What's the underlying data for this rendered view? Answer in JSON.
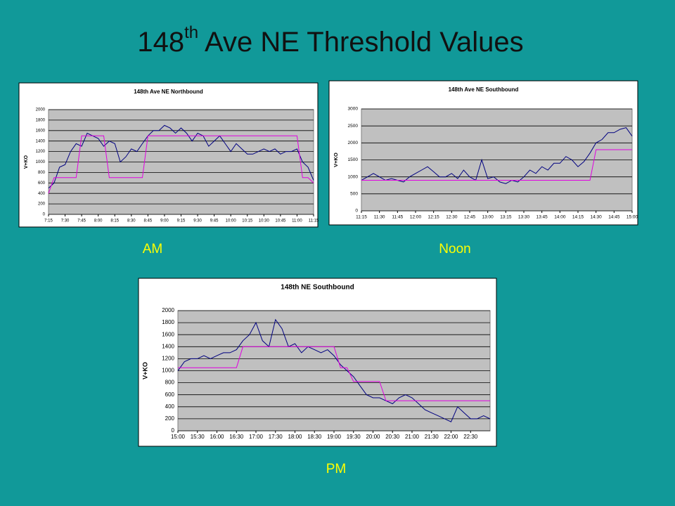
{
  "slide": {
    "title_main": "148",
    "title_sup": "th",
    "title_rest": " Ave NE Threshold Values",
    "captions": [
      "AM",
      "Noon",
      "PM"
    ]
  },
  "chart_data": [
    {
      "type": "line",
      "title": "148th Ave NE Northbound",
      "ylabel": "V+KO",
      "categories": [
        "7:15",
        null,
        null,
        "7:30",
        null,
        null,
        "7:45",
        null,
        null,
        "8:00",
        null,
        null,
        "8:15",
        null,
        null,
        "8:30",
        null,
        null,
        "8:45",
        null,
        null,
        "9:00",
        null,
        null,
        "9:15",
        null,
        null,
        "9:30",
        null,
        null,
        "9:45",
        null,
        null,
        "10:00",
        null,
        null,
        "10:15",
        null,
        null,
        "10:30",
        null,
        null,
        "10:45",
        null,
        null,
        "11:00",
        null,
        null,
        "11:15"
      ],
      "series": [
        {
          "color": "#000080",
          "values": [
            500,
            600,
            900,
            950,
            1200,
            1350,
            1300,
            1550,
            1500,
            1450,
            1300,
            1400,
            1350,
            1000,
            1100,
            1250,
            1200,
            1350,
            1500,
            1600,
            1600,
            1700,
            1650,
            1550,
            1650,
            1550,
            1400,
            1550,
            1500,
            1300,
            1400,
            1500,
            1350,
            1200,
            1350,
            1250,
            1150,
            1150,
            1200,
            1250,
            1200,
            1250,
            1150,
            1200,
            1200,
            1250,
            1000,
            900,
            650
          ]
        },
        {
          "color": "#e000e0",
          "values": [
            400,
            700,
            700,
            700,
            700,
            700,
            1500,
            1500,
            1500,
            1500,
            1500,
            700,
            700,
            700,
            700,
            700,
            700,
            700,
            1500,
            1500,
            1500,
            1500,
            1500,
            1500,
            1500,
            1500,
            1500,
            1500,
            1500,
            1500,
            1500,
            1500,
            1500,
            1500,
            1500,
            1500,
            1500,
            1500,
            1500,
            1500,
            1500,
            1500,
            1500,
            1500,
            1500,
            1500,
            700,
            700,
            600
          ]
        }
      ],
      "ylim": [
        0,
        2000
      ],
      "yticks": [
        0,
        200,
        400,
        600,
        800,
        1000,
        1200,
        1400,
        1600,
        1800,
        2000
      ],
      "grid": true
    },
    {
      "type": "line",
      "title": "148th Ave NE Southbound",
      "ylabel": "V+KO",
      "categories": [
        "11:15",
        null,
        null,
        "11:30",
        null,
        null,
        "11:45",
        null,
        null,
        "12:00",
        null,
        null,
        "12:15",
        null,
        null,
        "12:30",
        null,
        null,
        "12:45",
        null,
        null,
        "13:00",
        null,
        null,
        "13:15",
        null,
        null,
        "13:30",
        null,
        null,
        "13:45",
        null,
        null,
        "14:00",
        null,
        null,
        "14:15",
        null,
        null,
        "14:30",
        null,
        null,
        "14:45",
        null,
        null,
        "15:00"
      ],
      "series": [
        {
          "color": "#000080",
          "values": [
            900,
            1000,
            1100,
            1000,
            900,
            950,
            900,
            850,
            1000,
            1100,
            1200,
            1300,
            1150,
            1000,
            1000,
            1100,
            950,
            1200,
            1000,
            900,
            1500,
            950,
            1000,
            850,
            800,
            900,
            850,
            1000,
            1200,
            1100,
            1300,
            1200,
            1400,
            1400,
            1600,
            1500,
            1300,
            1450,
            1700,
            2000,
            2100,
            2300,
            2300,
            2400,
            2450,
            2200
          ]
        },
        {
          "color": "#e000e0",
          "values": [
            900,
            900,
            900,
            900,
            900,
            900,
            900,
            900,
            900,
            900,
            900,
            900,
            900,
            900,
            900,
            900,
            900,
            900,
            900,
            900,
            900,
            900,
            900,
            900,
            900,
            900,
            900,
            900,
            900,
            900,
            900,
            900,
            900,
            900,
            900,
            900,
            900,
            900,
            900,
            1800,
            1800,
            1800,
            1800,
            1800,
            1800,
            1800
          ]
        }
      ],
      "ylim": [
        0,
        3000
      ],
      "yticks": [
        0,
        500,
        1000,
        1500,
        2000,
        2500,
        3000
      ],
      "grid": true
    },
    {
      "type": "line",
      "title": "148th NE Southbound",
      "ylabel": "V+KO",
      "categories": [
        "15:00",
        null,
        null,
        "15:30",
        null,
        null,
        "16:00",
        null,
        null,
        "16:30",
        null,
        null,
        "17:00",
        null,
        null,
        "17:30",
        null,
        null,
        "18:00",
        null,
        null,
        "18:30",
        null,
        null,
        "19:00",
        null,
        null,
        "19:30",
        null,
        null,
        "20:00",
        null,
        null,
        "20:30",
        null,
        null,
        "21:00",
        null,
        null,
        "21:30",
        null,
        null,
        "22:00",
        null,
        null,
        "22:30",
        null,
        null,
        null
      ],
      "series": [
        {
          "color": "#000080",
          "values": [
            1000,
            1150,
            1200,
            1200,
            1250,
            1200,
            1250,
            1300,
            1300,
            1350,
            1500,
            1600,
            1800,
            1500,
            1400,
            1850,
            1700,
            1400,
            1450,
            1300,
            1400,
            1350,
            1300,
            1350,
            1250,
            1100,
            1000,
            900,
            750,
            600,
            550,
            550,
            500,
            450,
            550,
            600,
            550,
            450,
            350,
            300,
            250,
            200,
            150,
            400,
            300,
            200,
            200,
            250,
            200
          ]
        },
        {
          "color": "#e000e0",
          "values": [
            1050,
            1050,
            1050,
            1050,
            1050,
            1050,
            1050,
            1050,
            1050,
            1050,
            1400,
            1400,
            1400,
            1400,
            1400,
            1400,
            1400,
            1400,
            1400,
            1400,
            1400,
            1400,
            1400,
            1400,
            1400,
            1050,
            1050,
            820,
            820,
            820,
            820,
            820,
            500,
            500,
            500,
            500,
            500,
            500,
            500,
            500,
            500,
            500,
            500,
            500,
            500,
            500,
            500,
            500,
            500
          ]
        }
      ],
      "ylim": [
        0,
        2000
      ],
      "yticks": [
        0,
        200,
        400,
        600,
        800,
        1000,
        1200,
        1400,
        1600,
        1800,
        2000
      ],
      "grid": true
    }
  ]
}
